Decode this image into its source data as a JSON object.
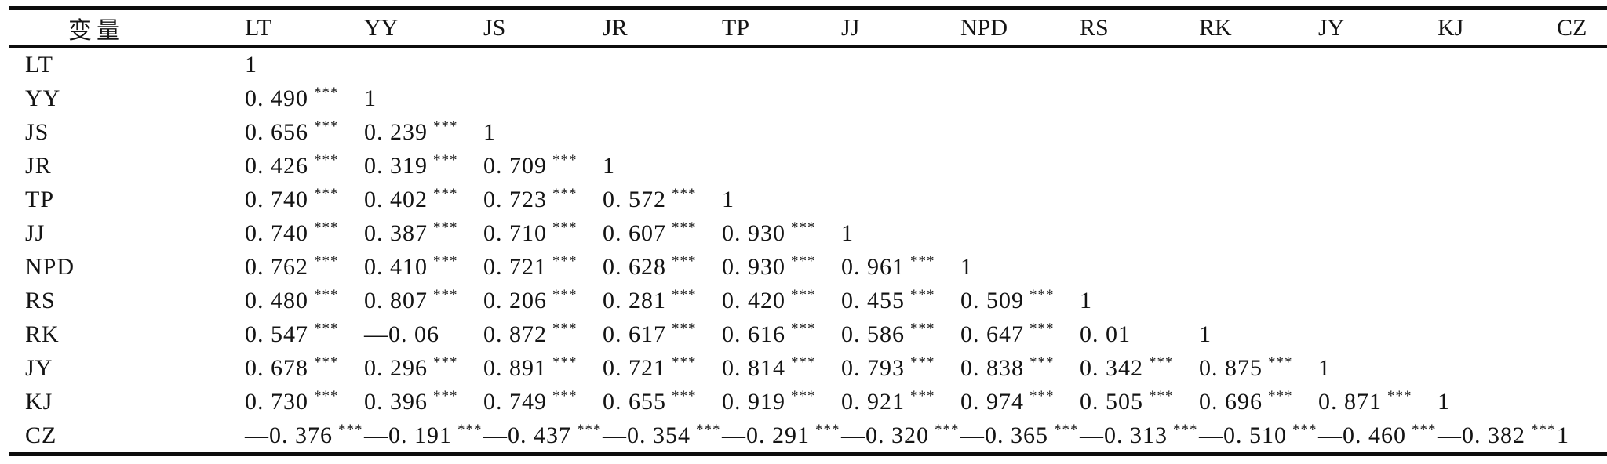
{
  "page": {
    "background": "#ffffff",
    "text_color": "#141414",
    "rule_color": "#0d0d0d"
  },
  "table": {
    "significance_marker": "***",
    "columns": [
      "变量",
      "LT",
      "YY",
      "JS",
      "JR",
      "TP",
      "JJ",
      "NPD",
      "RS",
      "RK",
      "JY",
      "KJ",
      "CZ"
    ],
    "rows": [
      {
        "label": "LT",
        "cells": [
          {
            "v": "1",
            "s": ""
          }
        ]
      },
      {
        "label": "YY",
        "cells": [
          {
            "v": "0. 490",
            "s": "***"
          },
          {
            "v": "1",
            "s": ""
          }
        ]
      },
      {
        "label": "JS",
        "cells": [
          {
            "v": "0. 656",
            "s": "***"
          },
          {
            "v": "0. 239",
            "s": "***"
          },
          {
            "v": "1",
            "s": ""
          }
        ]
      },
      {
        "label": "JR",
        "cells": [
          {
            "v": "0. 426",
            "s": "***"
          },
          {
            "v": "0. 319",
            "s": "***"
          },
          {
            "v": "0. 709",
            "s": "***"
          },
          {
            "v": "1",
            "s": ""
          }
        ]
      },
      {
        "label": "TP",
        "cells": [
          {
            "v": "0. 740",
            "s": "***"
          },
          {
            "v": "0. 402",
            "s": "***"
          },
          {
            "v": "0. 723",
            "s": "***"
          },
          {
            "v": "0. 572",
            "s": "***"
          },
          {
            "v": "1",
            "s": ""
          }
        ]
      },
      {
        "label": "JJ",
        "cells": [
          {
            "v": "0. 740",
            "s": "***"
          },
          {
            "v": "0. 387",
            "s": "***"
          },
          {
            "v": "0. 710",
            "s": "***"
          },
          {
            "v": "0. 607",
            "s": "***"
          },
          {
            "v": "0. 930",
            "s": "***"
          },
          {
            "v": "1",
            "s": ""
          }
        ]
      },
      {
        "label": "NPD",
        "cells": [
          {
            "v": "0. 762",
            "s": "***"
          },
          {
            "v": "0. 410",
            "s": "***"
          },
          {
            "v": "0. 721",
            "s": "***"
          },
          {
            "v": "0. 628",
            "s": "***"
          },
          {
            "v": "0. 930",
            "s": "***"
          },
          {
            "v": "0. 961",
            "s": "***"
          },
          {
            "v": "1",
            "s": ""
          }
        ]
      },
      {
        "label": "RS",
        "cells": [
          {
            "v": "0. 480",
            "s": "***"
          },
          {
            "v": "0. 807",
            "s": "***"
          },
          {
            "v": "0. 206",
            "s": "***"
          },
          {
            "v": "0. 281",
            "s": "***"
          },
          {
            "v": "0. 420",
            "s": "***"
          },
          {
            "v": "0. 455",
            "s": "***"
          },
          {
            "v": "0. 509",
            "s": "***"
          },
          {
            "v": "1",
            "s": ""
          }
        ]
      },
      {
        "label": "RK",
        "cells": [
          {
            "v": "0. 547",
            "s": "***"
          },
          {
            "v": "—0. 06",
            "s": ""
          },
          {
            "v": "0. 872",
            "s": "***"
          },
          {
            "v": "0. 617",
            "s": "***"
          },
          {
            "v": "0. 616",
            "s": "***"
          },
          {
            "v": "0. 586",
            "s": "***"
          },
          {
            "v": "0. 647",
            "s": "***"
          },
          {
            "v": "0. 01",
            "s": ""
          },
          {
            "v": "1",
            "s": ""
          }
        ]
      },
      {
        "label": "JY",
        "cells": [
          {
            "v": "0. 678",
            "s": "***"
          },
          {
            "v": "0. 296",
            "s": "***"
          },
          {
            "v": "0. 891",
            "s": "***"
          },
          {
            "v": "0. 721",
            "s": "***"
          },
          {
            "v": "0. 814",
            "s": "***"
          },
          {
            "v": "0. 793",
            "s": "***"
          },
          {
            "v": "0. 838",
            "s": "***"
          },
          {
            "v": "0. 342",
            "s": "***"
          },
          {
            "v": "0. 875",
            "s": "***"
          },
          {
            "v": "1",
            "s": ""
          }
        ]
      },
      {
        "label": "KJ",
        "cells": [
          {
            "v": "0. 730",
            "s": "***"
          },
          {
            "v": "0. 396",
            "s": "***"
          },
          {
            "v": "0. 749",
            "s": "***"
          },
          {
            "v": "0. 655",
            "s": "***"
          },
          {
            "v": "0. 919",
            "s": "***"
          },
          {
            "v": "0. 921",
            "s": "***"
          },
          {
            "v": "0. 974",
            "s": "***"
          },
          {
            "v": "0. 505",
            "s": "***"
          },
          {
            "v": "0. 696",
            "s": "***"
          },
          {
            "v": "0. 871",
            "s": "***"
          },
          {
            "v": "1",
            "s": ""
          }
        ]
      },
      {
        "label": "CZ",
        "cells": [
          {
            "v": "—0. 376",
            "s": "***"
          },
          {
            "v": "—0. 191",
            "s": "***"
          },
          {
            "v": "—0. 437",
            "s": "***"
          },
          {
            "v": "—0. 354",
            "s": "***"
          },
          {
            "v": "—0. 291",
            "s": "***"
          },
          {
            "v": "—0. 320",
            "s": "***"
          },
          {
            "v": "—0. 365",
            "s": "***"
          },
          {
            "v": "—0. 313",
            "s": "***"
          },
          {
            "v": "—0. 510",
            "s": "***"
          },
          {
            "v": "—0. 460",
            "s": "***"
          },
          {
            "v": "—0. 382",
            "s": "***"
          },
          {
            "v": "1",
            "s": ""
          }
        ]
      }
    ]
  }
}
